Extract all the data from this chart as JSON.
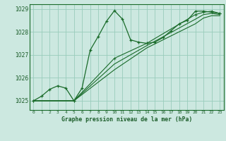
{
  "title": "Graphe pression niveau de la mer (hPa)",
  "bg_color": "#cce8e0",
  "grid_color": "#99ccbb",
  "line_color": "#1a6b2a",
  "text_color": "#1a5c28",
  "xlim": [
    -0.5,
    23.5
  ],
  "ylim": [
    1024.6,
    1029.2
  ],
  "yticks": [
    1025,
    1026,
    1027,
    1028,
    1029
  ],
  "xticks": [
    0,
    1,
    2,
    3,
    4,
    5,
    6,
    7,
    8,
    9,
    10,
    11,
    12,
    13,
    14,
    15,
    16,
    17,
    18,
    19,
    20,
    21,
    22,
    23
  ],
  "series1_x": [
    0,
    1,
    2,
    3,
    4,
    5,
    6,
    7,
    8,
    9,
    10,
    11,
    12,
    13,
    14,
    15,
    16,
    17,
    18,
    19,
    20,
    21,
    22,
    23
  ],
  "series1_y": [
    1025.0,
    1025.2,
    1025.5,
    1025.65,
    1025.55,
    1025.0,
    1025.55,
    1027.2,
    1027.8,
    1028.45,
    1028.92,
    1028.55,
    1027.65,
    1027.55,
    1027.5,
    1027.55,
    1027.75,
    1028.05,
    1028.35,
    1028.5,
    1028.9,
    1028.9,
    1028.85,
    1028.8
  ],
  "series2_x": [
    0,
    5,
    10,
    14,
    20,
    21,
    22,
    23
  ],
  "series2_y": [
    1025.0,
    1025.0,
    1026.85,
    1027.5,
    1028.75,
    1028.85,
    1028.9,
    1028.8
  ],
  "series3_x": [
    0,
    5,
    10,
    14,
    20,
    21,
    22,
    23
  ],
  "series3_y": [
    1025.0,
    1025.0,
    1026.6,
    1027.4,
    1028.55,
    1028.75,
    1028.8,
    1028.75
  ],
  "series4_x": [
    0,
    5,
    10,
    14,
    20,
    21,
    22,
    23
  ],
  "series4_y": [
    1025.0,
    1025.0,
    1026.35,
    1027.3,
    1028.35,
    1028.6,
    1028.7,
    1028.7
  ]
}
